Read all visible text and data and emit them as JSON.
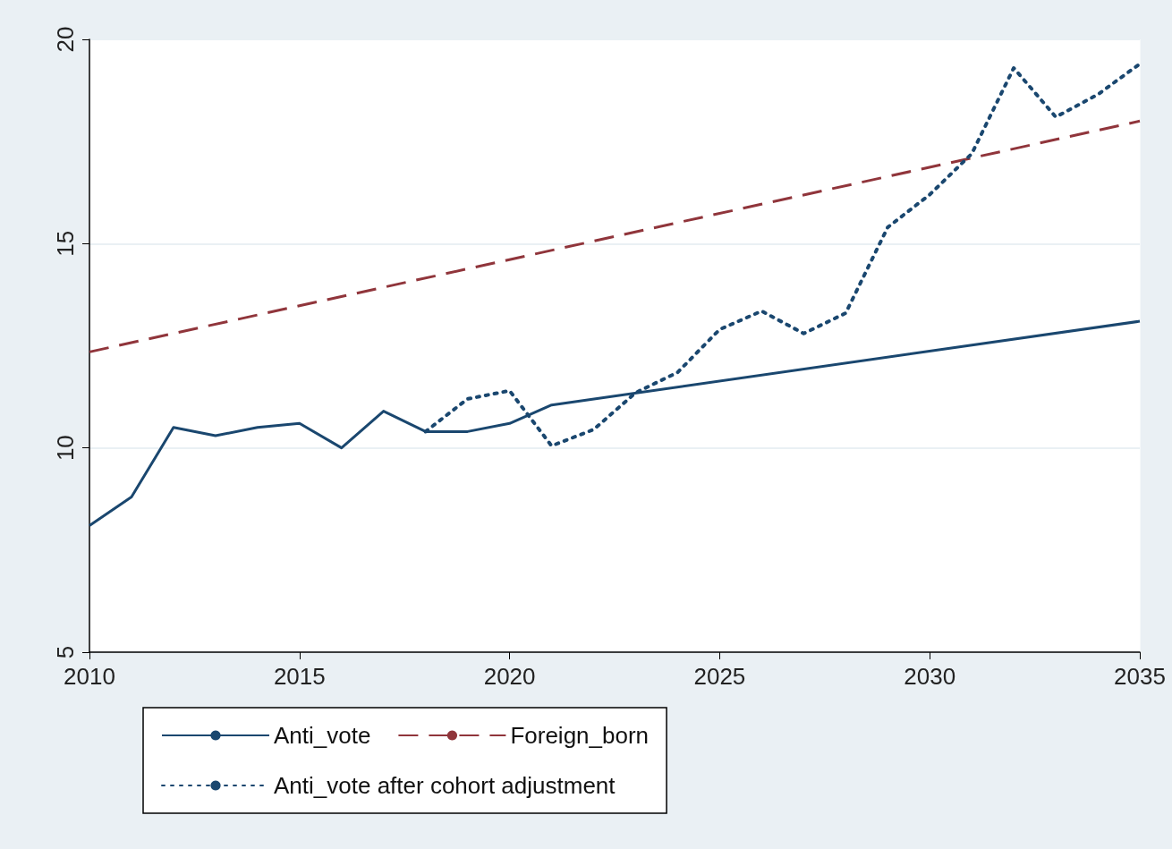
{
  "chart_data": {
    "type": "line",
    "xlim": [
      2010,
      2035
    ],
    "xticks": [
      2010,
      2015,
      2020,
      2025,
      2030,
      2035
    ],
    "ylim": [
      5,
      20
    ],
    "yticks": [
      5,
      10,
      15,
      20
    ],
    "grid": "y",
    "legend": "bottom",
    "marker": "none",
    "series": [
      {
        "name": "Anti_vote",
        "color": "#1a476f",
        "line_style": "solid",
        "x": [
          2010,
          2011,
          2012,
          2013,
          2014,
          2015,
          2016,
          2017,
          2018,
          2019,
          2020,
          2021,
          2035
        ],
        "values": [
          8.1,
          8.8,
          10.5,
          10.3,
          10.5,
          10.6,
          10.0,
          10.9,
          10.4,
          10.4,
          10.6,
          11.05,
          13.1
        ]
      },
      {
        "name": "Foreign_born",
        "color": "#90353b",
        "line_style": "dashed",
        "x": [
          2010,
          2035
        ],
        "values": [
          12.35,
          18.0
        ]
      },
      {
        "name": "Anti_vote after cohort adjustment",
        "color": "#1a476f",
        "line_style": "dotted",
        "x": [
          2018,
          2019,
          2020,
          2021,
          2022,
          2023,
          2024,
          2025,
          2026,
          2027,
          2028,
          2029,
          2030,
          2031,
          2032,
          2033,
          2034,
          2035
        ],
        "values": [
          10.4,
          11.2,
          11.4,
          10.05,
          10.45,
          11.35,
          11.85,
          12.9,
          13.35,
          12.8,
          13.3,
          15.4,
          16.2,
          17.2,
          19.3,
          18.1,
          18.65,
          19.4
        ]
      }
    ]
  }
}
